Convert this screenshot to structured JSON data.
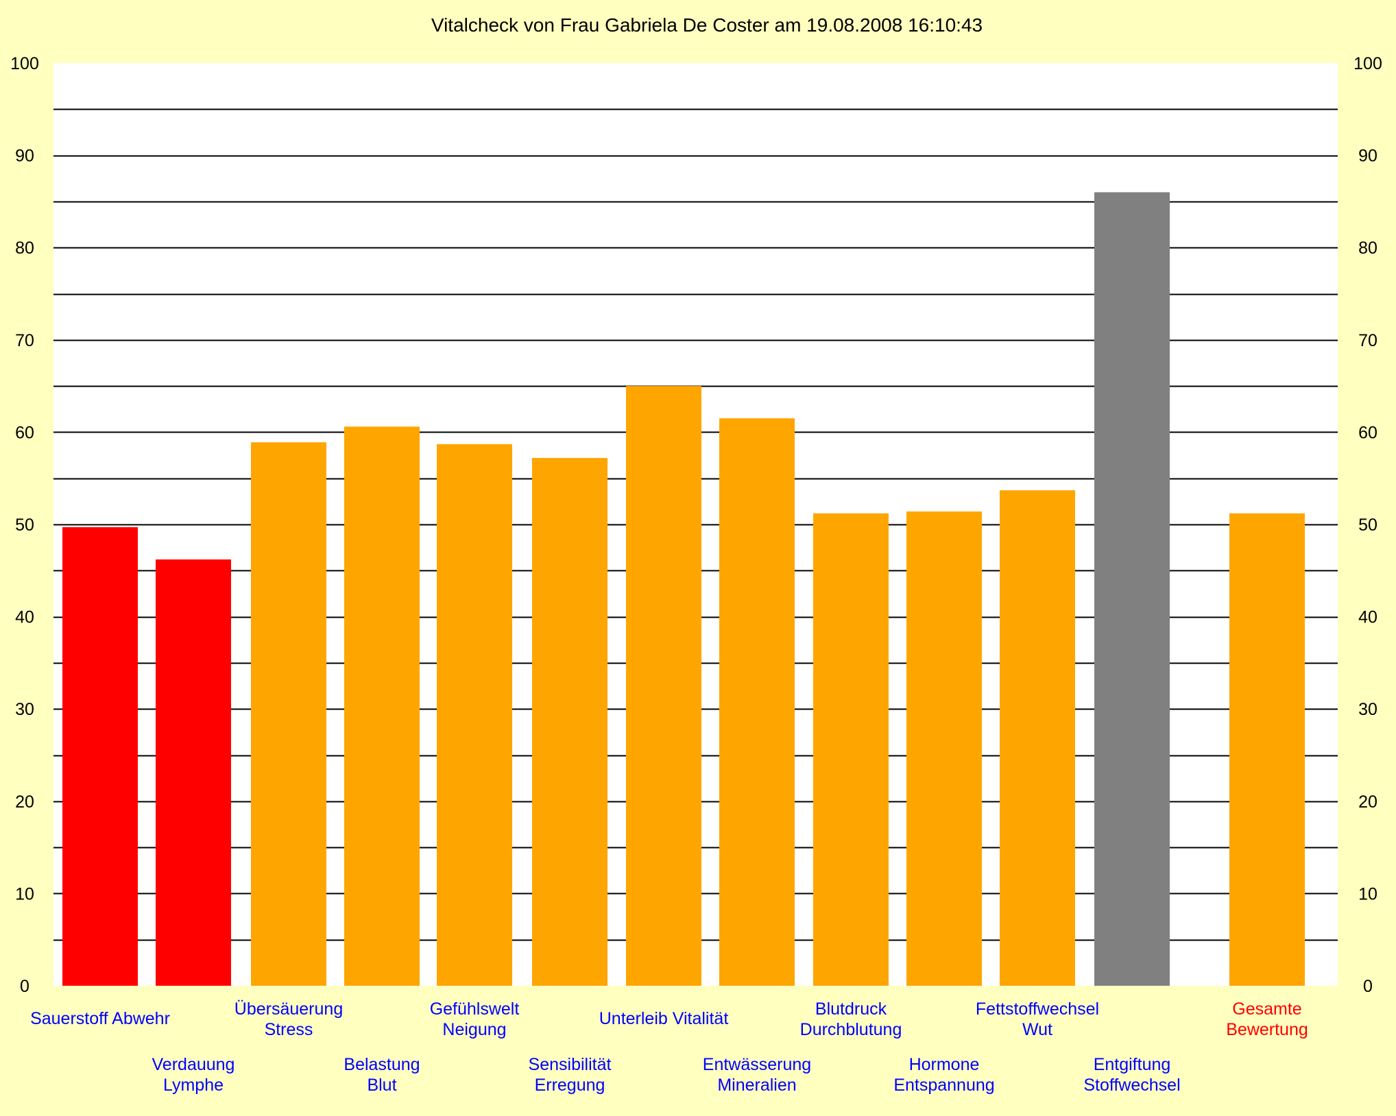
{
  "chart_data": {
    "type": "bar",
    "title": "Vitalcheck von Frau Gabriela De Coster am 19.08.2008 16:10:43",
    "ylim": [
      0,
      100
    ],
    "yticks": [
      0,
      10,
      20,
      30,
      40,
      50,
      60,
      70,
      80,
      90,
      100
    ],
    "grid": true,
    "right_axis": true,
    "colors": {
      "background": "#ffffc0",
      "plot_background": "#ffffff",
      "gridline": "#000000",
      "label_blue": "#0000ff",
      "label_red": "#ff0000",
      "red": "#ff0000",
      "orange": "#ffa500",
      "gray": "#808080"
    },
    "bars": [
      {
        "label": [
          "Sauerstoff Abwehr"
        ],
        "value": 49.7,
        "color": "red",
        "label_row": "upper",
        "label_color": "blue"
      },
      {
        "label": [
          "Verdauung",
          "Lymphe"
        ],
        "value": 46.2,
        "color": "red",
        "label_row": "lower",
        "label_color": "blue"
      },
      {
        "label": [
          "Übersäuerung",
          "Stress"
        ],
        "value": 58.9,
        "color": "orange",
        "label_row": "upper",
        "label_color": "blue"
      },
      {
        "label": [
          "Belastung",
          "Blut"
        ],
        "value": 60.6,
        "color": "orange",
        "label_row": "lower",
        "label_color": "blue"
      },
      {
        "label": [
          "Gefühlswelt",
          "Neigung"
        ],
        "value": 58.7,
        "color": "orange",
        "label_row": "upper",
        "label_color": "blue"
      },
      {
        "label": [
          "Sensibilität",
          "Erregung"
        ],
        "value": 57.2,
        "color": "orange",
        "label_row": "lower",
        "label_color": "blue"
      },
      {
        "label": [
          "Unterleib Vitalität"
        ],
        "value": 65.0,
        "color": "orange",
        "label_row": "upper",
        "label_color": "blue"
      },
      {
        "label": [
          "Entwässerung",
          "Mineralien"
        ],
        "value": 61.5,
        "color": "orange",
        "label_row": "lower",
        "label_color": "blue"
      },
      {
        "label": [
          "Blutdruck",
          "Durchblutung"
        ],
        "value": 51.2,
        "color": "orange",
        "label_row": "upper",
        "label_color": "blue"
      },
      {
        "label": [
          "Hormone",
          "Entspannung"
        ],
        "value": 51.4,
        "color": "orange",
        "label_row": "lower",
        "label_color": "blue"
      },
      {
        "label": [
          "Fettstoffwechsel",
          "Wut"
        ],
        "value": 53.7,
        "color": "orange",
        "label_row": "upper",
        "label_color": "blue"
      },
      {
        "label": [
          "Entgiftung",
          "Stoffwechsel"
        ],
        "value": 86.0,
        "color": "gray",
        "label_row": "lower",
        "label_color": "blue"
      },
      {
        "label": [
          "Gesamte",
          "Bewertung"
        ],
        "value": 51.2,
        "color": "orange",
        "label_row": "upper",
        "label_color": "red"
      }
    ]
  }
}
